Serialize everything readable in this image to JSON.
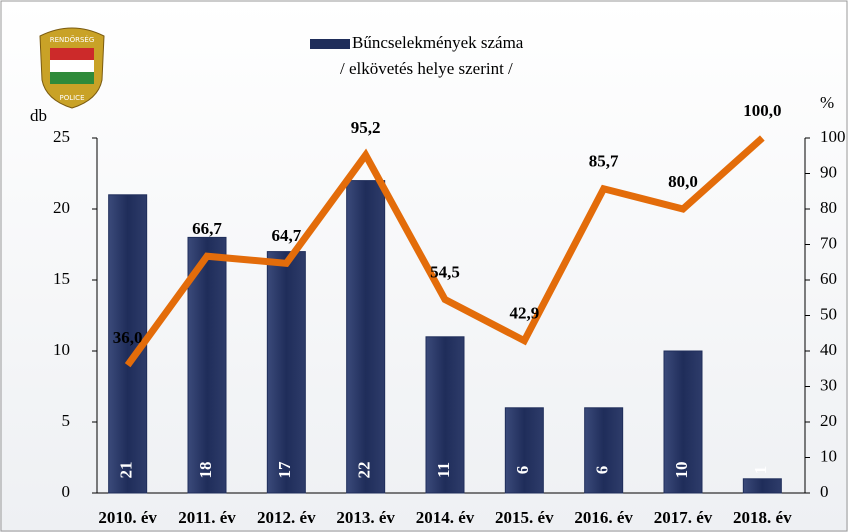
{
  "logo": {
    "top": "RENDŐRSÉG",
    "bottom": "POLICE"
  },
  "chart_data": {
    "type": "bar-line",
    "legend_subtitle": "/ elkövetés helye szerint /",
    "y_label": "db",
    "y2_label": "%",
    "categories": [
      "2010. év",
      "2011. év",
      "2012. év",
      "2013. év",
      "2014. év",
      "2015. év",
      "2016. év",
      "2017. év",
      "2018. év"
    ],
    "series": [
      {
        "name": "Bűncselekmények száma",
        "type": "bar",
        "color": "#1f2d5a",
        "values": [
          21,
          18,
          17,
          22,
          11,
          6,
          6,
          10,
          1
        ]
      },
      {
        "type": "line",
        "axis": "y2",
        "color": "#e36c0a",
        "values": [
          36.0,
          66.7,
          64.7,
          95.2,
          54.5,
          42.9,
          85.7,
          80.0,
          100.0
        ],
        "value_labels": [
          "36,0",
          "66,7",
          "64,7",
          "95,2",
          "54,5",
          "42,9",
          "85,7",
          "80,0",
          "100,0"
        ]
      }
    ],
    "ylim": [
      0,
      25
    ],
    "yticks": [
      0,
      5,
      10,
      15,
      20,
      25
    ],
    "y2lim": [
      0,
      100
    ],
    "y2ticks": [
      0,
      10,
      20,
      30,
      40,
      50,
      60,
      70,
      80,
      90,
      100
    ]
  }
}
